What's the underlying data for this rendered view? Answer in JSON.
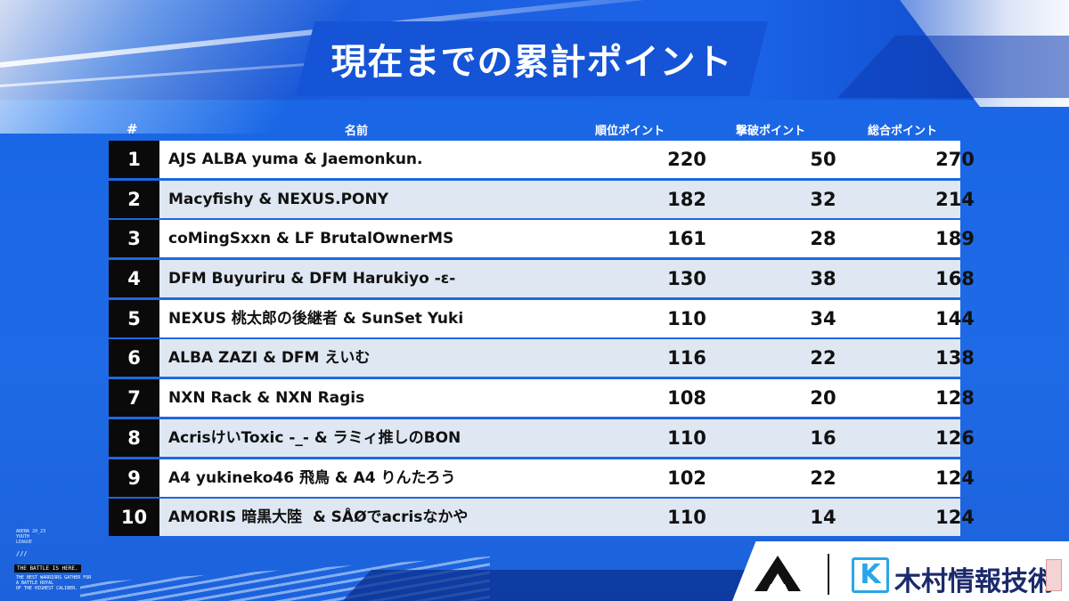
{
  "title": "現在までの累計ポイント",
  "table": {
    "headers": {
      "rank": "#",
      "name": "名前",
      "placement_points": "順位ポイント",
      "kill_points": "撃破ポイント",
      "total_points": "総合ポイント"
    },
    "rows": [
      {
        "rank": "1",
        "name": "AJS ALBA yuma & Jaemonkun.",
        "placement": "220",
        "kills": "50",
        "total": "270"
      },
      {
        "rank": "2",
        "name": "Macyfishy & NEXUS.PONY",
        "placement": "182",
        "kills": "32",
        "total": "214"
      },
      {
        "rank": "3",
        "name": "coMingSxxn & LF BrutalOwnerMS",
        "placement": "161",
        "kills": "28",
        "total": "189"
      },
      {
        "rank": "4",
        "name": "DFM Buyuriru & DFM Harukiyo -ε-",
        "placement": "130",
        "kills": "38",
        "total": "168"
      },
      {
        "rank": "5",
        "name": "NEXUS 桃太郎の後継者 & SunSet Yuki",
        "placement": "110",
        "kills": "34",
        "total": "144"
      },
      {
        "rank": "6",
        "name": "ALBA ZAZI & DFM えいむ",
        "placement": "116",
        "kills": "22",
        "total": "138"
      },
      {
        "rank": "7",
        "name": "NXN Rack & NXN Ragis",
        "placement": "108",
        "kills": "20",
        "total": "128"
      },
      {
        "rank": "8",
        "name": "AcrisけいToxic -_- & ラミィ推しのBON",
        "placement": "110",
        "kills": "16",
        "total": "126"
      },
      {
        "rank": "9",
        "name": "A4 yukineko46 飛鳥 & A4 りんたろう",
        "placement": "102",
        "kills": "22",
        "total": "124"
      },
      {
        "rank": "10",
        "name": "AMORIS 暗黒大陸 ︎ & SÅØでacrisなかや",
        "placement": "110",
        "kills": "14",
        "total": "124"
      }
    ]
  },
  "branding": {
    "event_lines": [
      "ARENA 20_23",
      "YOUTH",
      "LEAGUE"
    ],
    "slashes": "///",
    "tagline_heading": "THE BATTLE IS HERE.",
    "tagline_lines": [
      "THE BEST WARRIORS GATHER FOR",
      "A BATTLE ROYAL",
      "OF THE HIGHEST CALIBER."
    ],
    "sponsor_icon_letter": "K",
    "sponsor_name": "木村情報技術",
    "arena_logo_icon": "arena-a-logo-icon"
  },
  "colors": {
    "background_blue": "#1a5fd6",
    "rank_cell": "#0a0a0a",
    "row_alt": "#dfe7f2",
    "sponsor_accent": "#2aa6e8",
    "sponsor_text": "#1b2a6b"
  }
}
